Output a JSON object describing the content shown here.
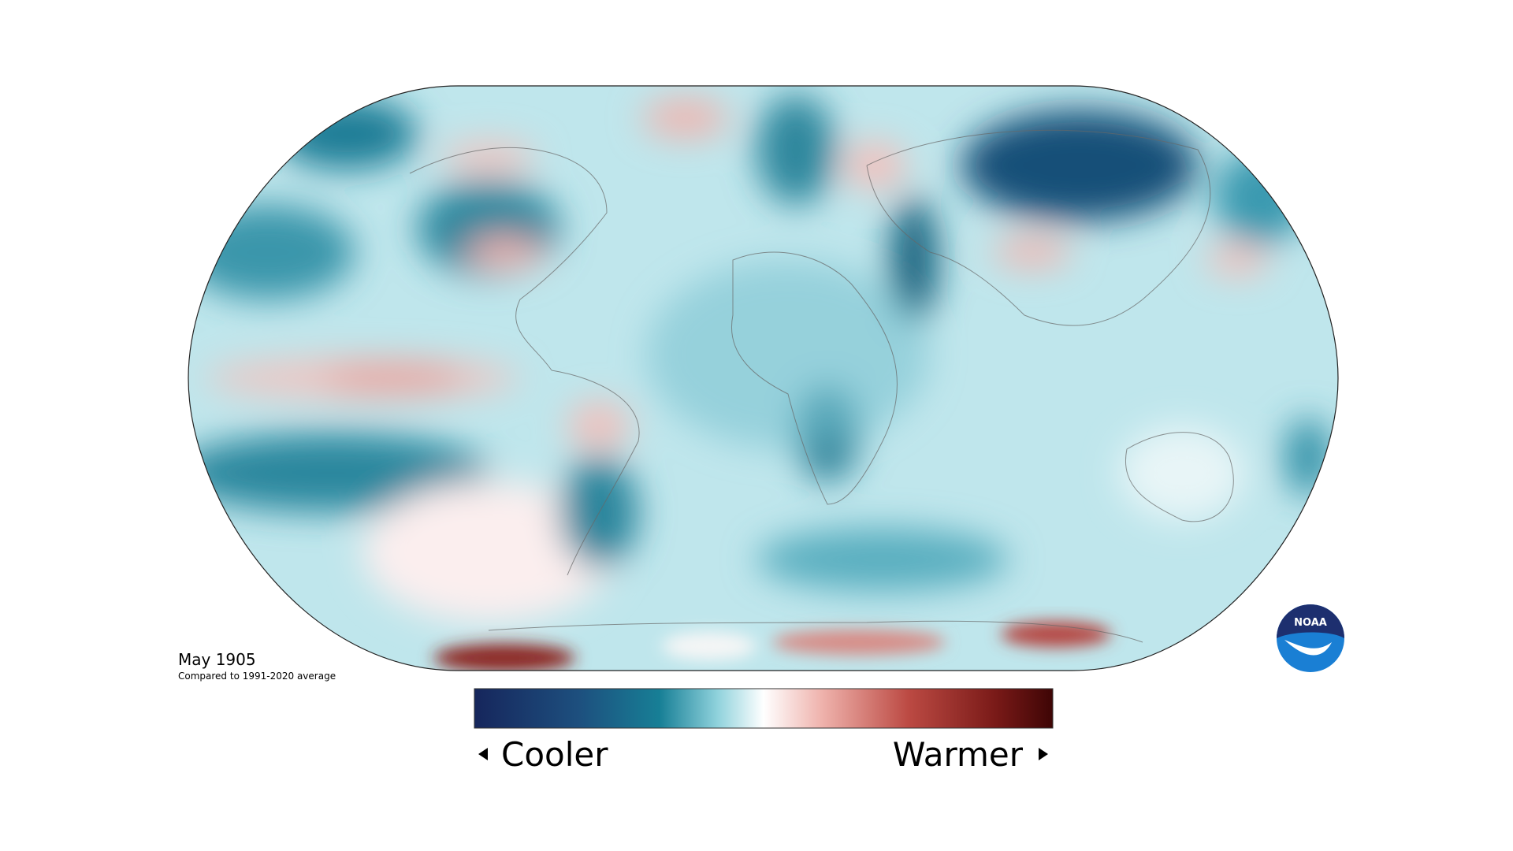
{
  "map": {
    "title": "May 1905",
    "subtitle": "Compared to 1991-2020 average",
    "legend": {
      "low_label": "Cooler",
      "high_label": "Warmer"
    }
  },
  "logo": {
    "text": "NOAA"
  }
}
